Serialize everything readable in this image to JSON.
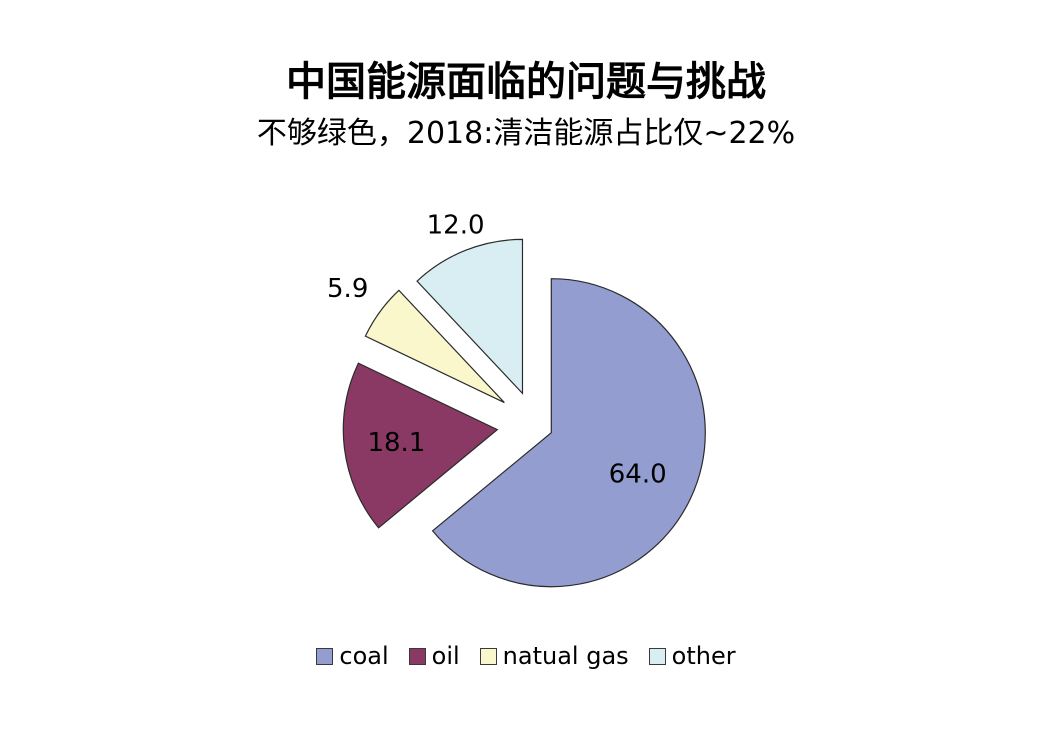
{
  "chart_data": {
    "type": "pie",
    "title": "中国能源面临的问题与挑战",
    "subtitle": "不够绿色，2018:清洁能源占比仅~22%",
    "labels": [
      "coal",
      "oil",
      "natual gas",
      "other"
    ],
    "values": [
      64.0,
      18.1,
      5.9,
      12.0
    ],
    "value_labels": [
      "64.0",
      "18.1",
      "5.9",
      "12.0"
    ],
    "colors": [
      "#939DD0",
      "#8A3964",
      "#FAF7CC",
      "#D9EEF2"
    ],
    "exploded": true,
    "legend_position": "bottom",
    "start_angle": "top",
    "direction": "clockwise"
  }
}
